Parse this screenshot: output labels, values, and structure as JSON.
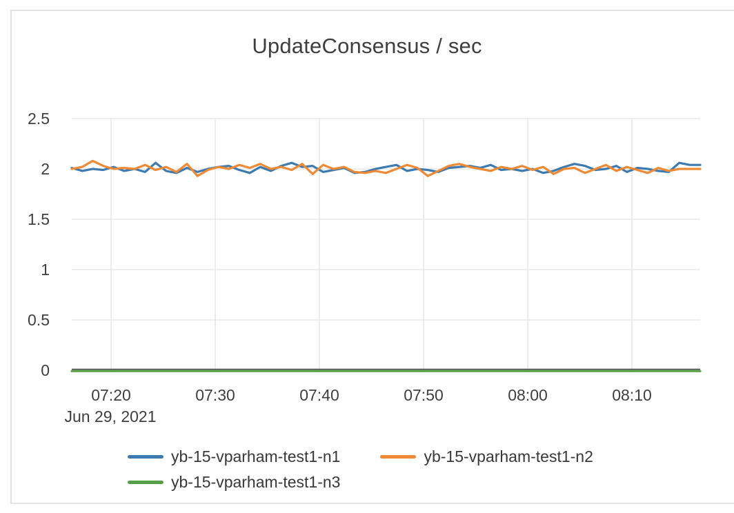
{
  "card": {
    "title": "UpdateConsensus / sec"
  },
  "colors": {
    "series_blue": "#3c7aaf",
    "series_orange": "#ee8934",
    "series_green": "#55a046",
    "grid": "#e8e8e8",
    "zero_axis": "#444444",
    "text": "#3e3e3e",
    "card_border": "#e3e3e3"
  },
  "chart_data": {
    "type": "line",
    "title": "UpdateConsensus / sec",
    "x_axis": {
      "date_label": "Jun 29, 2021",
      "tick_labels": [
        "07:20",
        "07:30",
        "07:40",
        "07:50",
        "08:00",
        "08:10"
      ]
    },
    "y_axis": {
      "tick_labels": [
        "2.5",
        "2",
        "1.5",
        "1",
        "0.5",
        "0"
      ],
      "range": [
        0,
        2.5
      ],
      "grid": true
    },
    "legend": {
      "position": "bottom"
    },
    "series": [
      {
        "name": "yb-15-vparham-test1-n1",
        "color": "#3c7aaf",
        "values": [
          2.01,
          1.98,
          2.0,
          1.99,
          2.02,
          1.98,
          2.0,
          1.97,
          2.06,
          1.98,
          1.96,
          2.01,
          1.97,
          2.0,
          2.02,
          2.03,
          1.99,
          1.96,
          2.02,
          1.98,
          2.03,
          2.06,
          2.02,
          2.03,
          1.97,
          1.99,
          2.01,
          1.96,
          1.97,
          2.0,
          2.02,
          2.04,
          1.98,
          2.0,
          1.99,
          1.97,
          2.01,
          2.02,
          2.03,
          2.01,
          2.04,
          1.99,
          2.0,
          1.98,
          2.0,
          1.96,
          1.98,
          2.02,
          2.05,
          2.03,
          1.99,
          2.0,
          2.03,
          1.97,
          2.01,
          2.0,
          1.98,
          1.97,
          2.06,
          2.04,
          2.04
        ]
      },
      {
        "name": "yb-15-vparham-test1-n2",
        "color": "#ee8934",
        "values": [
          2.0,
          2.02,
          2.08,
          2.03,
          2.0,
          2.01,
          2.0,
          2.04,
          1.99,
          2.02,
          1.97,
          2.05,
          1.93,
          1.99,
          2.02,
          2.0,
          2.04,
          2.01,
          2.05,
          2.0,
          2.02,
          1.99,
          2.05,
          1.95,
          2.04,
          2.0,
          2.02,
          1.97,
          1.96,
          1.98,
          1.96,
          2.0,
          2.04,
          2.01,
          1.93,
          1.98,
          2.03,
          2.05,
          2.02,
          2.0,
          1.98,
          2.02,
          2.0,
          2.03,
          1.99,
          2.02,
          1.95,
          2.0,
          2.01,
          1.96,
          2.0,
          2.04,
          1.98,
          2.02,
          1.99,
          1.96,
          2.01,
          1.98,
          2.0,
          2.0,
          2.0
        ]
      },
      {
        "name": "yb-15-vparham-test1-n3",
        "color": "#55a046",
        "values": [
          0,
          0,
          0,
          0,
          0,
          0,
          0,
          0,
          0,
          0,
          0,
          0,
          0,
          0,
          0,
          0,
          0,
          0,
          0,
          0,
          0,
          0,
          0,
          0,
          0,
          0,
          0,
          0,
          0,
          0,
          0,
          0,
          0,
          0,
          0,
          0,
          0,
          0,
          0,
          0,
          0,
          0,
          0,
          0,
          0,
          0,
          0,
          0,
          0,
          0,
          0,
          0,
          0,
          0,
          0,
          0,
          0,
          0,
          0,
          0,
          0
        ]
      }
    ]
  }
}
